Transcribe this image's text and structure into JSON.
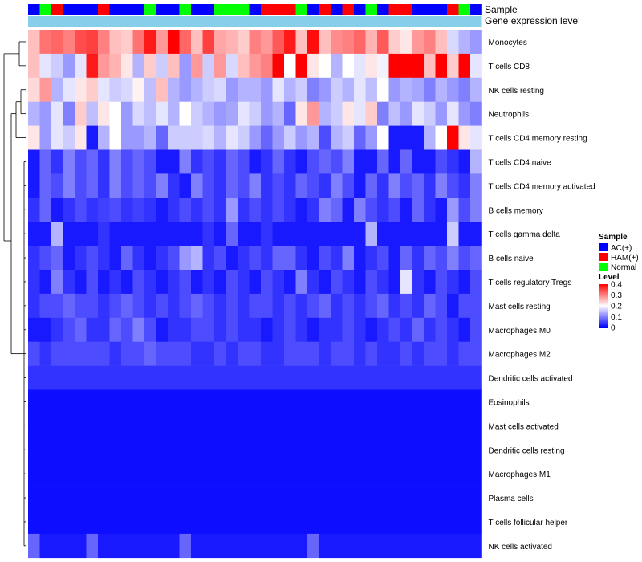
{
  "chart_data": {
    "type": "heatmap",
    "annotation_labels": [
      "Sample",
      "Gene expression level"
    ],
    "rows": [
      "Monocytes",
      "T cells CD8",
      "NK cells resting",
      "Neutrophils",
      "T cells CD4 memory resting",
      "T cells CD4 naive",
      "T cells CD4 memory activated",
      "B cells memory",
      "T cells gamma delta",
      "B cells naive",
      "T cells regulatory  Tregs",
      "Mast cells resting",
      "Macrophages M0",
      "Macrophages M2",
      "Dendritic cells activated",
      "Eosinophils",
      "Mast cells activated",
      "Dendritic cells resting",
      "Macrophages M1",
      "Plasma cells",
      "T cells follicular helper",
      "NK cells activated"
    ],
    "sample_groups": [
      "AC(+)",
      "Normal",
      "HAM(+)",
      "AC(+)",
      "AC(+)",
      "AC(+)",
      "HAM(+)",
      "AC(+)",
      "AC(+)",
      "AC(+)",
      "Normal",
      "AC(+)",
      "AC(+)",
      "Normal",
      "AC(+)",
      "AC(+)",
      "Normal",
      "Normal",
      "Normal",
      "AC(+)",
      "HAM(+)",
      "HAM(+)",
      "HAM(+)",
      "Normal",
      "AC(+)",
      "HAM(+)",
      "AC(+)",
      "HAM(+)",
      "AC(+)",
      "Normal",
      "AC(+)",
      "HAM(+)",
      "HAM(+)",
      "AC(+)",
      "AC(+)",
      "AC(+)",
      "HAM(+)",
      "Normal",
      "AC(+)"
    ],
    "values": [
      [
        0.25,
        0.31,
        0.32,
        0.3,
        0.34,
        0.35,
        0.3,
        0.25,
        0.24,
        0.31,
        0.38,
        0.28,
        0.4,
        0.32,
        0.25,
        0.35,
        0.27,
        0.26,
        0.24,
        0.3,
        0.28,
        0.33,
        0.38,
        0.25,
        0.39,
        0.25,
        0.29,
        0.3,
        0.32,
        0.26,
        0.33,
        0.24,
        0.22,
        0.28,
        0.3,
        0.25,
        0.17,
        0.14,
        0.12
      ],
      [
        0.25,
        0.18,
        0.16,
        0.12,
        0.18,
        0.38,
        0.28,
        0.26,
        0.22,
        0.14,
        0.24,
        0.16,
        0.25,
        0.12,
        0.28,
        0.16,
        0.28,
        0.17,
        0.25,
        0.28,
        0.3,
        0.42,
        0.2,
        0.42,
        0.22,
        0.2,
        0.14,
        0.2,
        0.18,
        0.22,
        0.19,
        0.42,
        0.42,
        0.42,
        0.25,
        0.4,
        0.24,
        0.4,
        0.18
      ],
      [
        0.23,
        0.28,
        0.14,
        0.18,
        0.22,
        0.24,
        0.18,
        0.16,
        0.17,
        0.21,
        0.15,
        0.25,
        0.14,
        0.12,
        0.14,
        0.16,
        0.17,
        0.12,
        0.14,
        0.14,
        0.12,
        0.18,
        0.14,
        0.16,
        0.1,
        0.12,
        0.16,
        0.14,
        0.18,
        0.15,
        0.2,
        0.12,
        0.14,
        0.13,
        0.1,
        0.14,
        0.12,
        0.1,
        0.14
      ],
      [
        0.14,
        0.12,
        0.18,
        0.1,
        0.24,
        0.15,
        0.22,
        0.2,
        0.12,
        0.17,
        0.15,
        0.18,
        0.14,
        0.2,
        0.16,
        0.14,
        0.12,
        0.13,
        0.18,
        0.16,
        0.12,
        0.14,
        0.08,
        0.22,
        0.28,
        0.14,
        0.16,
        0.22,
        0.18,
        0.24,
        0.1,
        0.15,
        0.12,
        0.18,
        0.16,
        0.12,
        0.18,
        0.12,
        0.1
      ],
      [
        0.22,
        0.12,
        0.18,
        0.16,
        0.22,
        0.02,
        0.14,
        0.2,
        0.12,
        0.12,
        0.14,
        0.08,
        0.16,
        0.16,
        0.16,
        0.17,
        0.14,
        0.18,
        0.16,
        0.12,
        0.08,
        0.12,
        0.16,
        0.12,
        0.14,
        0.06,
        0.14,
        0.16,
        0.08,
        0.12,
        0.2,
        0.02,
        0.02,
        0.02,
        0.14,
        0.2,
        0.42,
        0.22,
        0.18
      ],
      [
        0.02,
        0.08,
        0.04,
        0.1,
        0.06,
        0.08,
        0.04,
        0.1,
        0.06,
        0.08,
        0.06,
        0.02,
        0.02,
        0.1,
        0.04,
        0.06,
        0.04,
        0.08,
        0.06,
        0.02,
        0.04,
        0.08,
        0.04,
        0.02,
        0.06,
        0.08,
        0.06,
        0.1,
        0.02,
        0.02,
        0.08,
        0.02,
        0.08,
        0.02,
        0.02,
        0.06,
        0.04,
        0.02,
        0.14
      ],
      [
        0.02,
        0.08,
        0.06,
        0.1,
        0.06,
        0.08,
        0.04,
        0.1,
        0.06,
        0.08,
        0.06,
        0.1,
        0.04,
        0.02,
        0.1,
        0.06,
        0.04,
        0.08,
        0.06,
        0.1,
        0.04,
        0.06,
        0.04,
        0.08,
        0.06,
        0.04,
        0.1,
        0.06,
        0.02,
        0.08,
        0.04,
        0.1,
        0.06,
        0.08,
        0.04,
        0.1,
        0.06,
        0.04,
        0.1
      ],
      [
        0.04,
        0.08,
        0.02,
        0.04,
        0.06,
        0.04,
        0.05,
        0.06,
        0.04,
        0.05,
        0.04,
        0.02,
        0.04,
        0.06,
        0.04,
        0.06,
        0.04,
        0.12,
        0.04,
        0.06,
        0.04,
        0.06,
        0.04,
        0.02,
        0.04,
        0.1,
        0.08,
        0.02,
        0.1,
        0.06,
        0.04,
        0.06,
        0.02,
        0.08,
        0.04,
        0.02,
        0.12,
        0.06,
        0.1
      ],
      [
        0.02,
        0.02,
        0.14,
        0.02,
        0.02,
        0.02,
        0.04,
        0.02,
        0.02,
        0.02,
        0.02,
        0.02,
        0.02,
        0.02,
        0.02,
        0.04,
        0.02,
        0.08,
        0.02,
        0.02,
        0.04,
        0.02,
        0.02,
        0.02,
        0.02,
        0.02,
        0.02,
        0.02,
        0.02,
        0.14,
        0.02,
        0.02,
        0.02,
        0.02,
        0.02,
        0.02,
        0.16,
        0.02,
        0.02
      ],
      [
        0.04,
        0.06,
        0.08,
        0.02,
        0.04,
        0.06,
        0.04,
        0.02,
        0.08,
        0.04,
        0.02,
        0.04,
        0.06,
        0.12,
        0.14,
        0.04,
        0.06,
        0.02,
        0.04,
        0.06,
        0.04,
        0.08,
        0.08,
        0.04,
        0.02,
        0.06,
        0.04,
        0.1,
        0.02,
        0.04,
        0.06,
        0.02,
        0.08,
        0.04,
        0.08,
        0.06,
        0.1,
        0.06,
        0.08
      ],
      [
        0.04,
        0.02,
        0.1,
        0.04,
        0.02,
        0.06,
        0.02,
        0.04,
        0.02,
        0.06,
        0.04,
        0.02,
        0.04,
        0.06,
        0.02,
        0.04,
        0.02,
        0.06,
        0.04,
        0.02,
        0.06,
        0.04,
        0.02,
        0.1,
        0.04,
        0.02,
        0.06,
        0.04,
        0.02,
        0.06,
        0.04,
        0.02,
        0.18,
        0.04,
        0.02,
        0.06,
        0.04,
        0.02,
        0.06
      ],
      [
        0.04,
        0.06,
        0.06,
        0.08,
        0.06,
        0.06,
        0.04,
        0.06,
        0.08,
        0.06,
        0.04,
        0.06,
        0.04,
        0.06,
        0.08,
        0.06,
        0.04,
        0.06,
        0.04,
        0.06,
        0.06,
        0.04,
        0.06,
        0.04,
        0.06,
        0.08,
        0.04,
        0.06,
        0.04,
        0.06,
        0.08,
        0.04,
        0.06,
        0.04,
        0.08,
        0.06,
        0.02,
        0.06,
        0.06
      ],
      [
        0.02,
        0.02,
        0.04,
        0.06,
        0.08,
        0.04,
        0.04,
        0.08,
        0.06,
        0.1,
        0.06,
        0.02,
        0.04,
        0.04,
        0.06,
        0.06,
        0.04,
        0.06,
        0.04,
        0.04,
        0.02,
        0.04,
        0.06,
        0.04,
        0.02,
        0.04,
        0.04,
        0.06,
        0.04,
        0.02,
        0.04,
        0.06,
        0.04,
        0.08,
        0.04,
        0.06,
        0.04,
        0.02,
        0.06
      ],
      [
        0.06,
        0.04,
        0.06,
        0.06,
        0.06,
        0.06,
        0.06,
        0.04,
        0.06,
        0.06,
        0.08,
        0.06,
        0.06,
        0.06,
        0.04,
        0.04,
        0.06,
        0.04,
        0.06,
        0.06,
        0.04,
        0.04,
        0.06,
        0.06,
        0.06,
        0.04,
        0.06,
        0.06,
        0.04,
        0.06,
        0.04,
        0.04,
        0.06,
        0.04,
        0.06,
        0.06,
        0.04,
        0.06,
        0.06
      ],
      [
        0.04,
        0.04,
        0.04,
        0.04,
        0.04,
        0.04,
        0.04,
        0.04,
        0.04,
        0.04,
        0.04,
        0.04,
        0.04,
        0.04,
        0.04,
        0.04,
        0.04,
        0.04,
        0.04,
        0.04,
        0.04,
        0.04,
        0.04,
        0.04,
        0.04,
        0.04,
        0.04,
        0.04,
        0.04,
        0.04,
        0.04,
        0.04,
        0.04,
        0.04,
        0.04,
        0.04,
        0.04,
        0.04,
        0.04
      ],
      [
        0.01,
        0.01,
        0.01,
        0.01,
        0.01,
        0.01,
        0.01,
        0.01,
        0.01,
        0.01,
        0.01,
        0.01,
        0.01,
        0.01,
        0.01,
        0.01,
        0.01,
        0.01,
        0.01,
        0.01,
        0.01,
        0.01,
        0.01,
        0.01,
        0.01,
        0.01,
        0.01,
        0.01,
        0.01,
        0.01,
        0.01,
        0.01,
        0.01,
        0.01,
        0.01,
        0.01,
        0.01,
        0.01,
        0.01
      ],
      [
        0.01,
        0.01,
        0.01,
        0.01,
        0.01,
        0.01,
        0.01,
        0.01,
        0.01,
        0.01,
        0.01,
        0.01,
        0.01,
        0.01,
        0.01,
        0.01,
        0.01,
        0.01,
        0.01,
        0.01,
        0.01,
        0.01,
        0.01,
        0.01,
        0.01,
        0.01,
        0.01,
        0.01,
        0.01,
        0.01,
        0.01,
        0.01,
        0.01,
        0.01,
        0.01,
        0.01,
        0.01,
        0.01,
        0.01
      ],
      [
        0.01,
        0.01,
        0.01,
        0.01,
        0.01,
        0.01,
        0.01,
        0.01,
        0.01,
        0.01,
        0.01,
        0.01,
        0.01,
        0.01,
        0.01,
        0.01,
        0.01,
        0.01,
        0.01,
        0.01,
        0.01,
        0.01,
        0.01,
        0.01,
        0.01,
        0.01,
        0.01,
        0.01,
        0.01,
        0.01,
        0.01,
        0.01,
        0.01,
        0.01,
        0.01,
        0.01,
        0.01,
        0.01,
        0.01
      ],
      [
        0.01,
        0.01,
        0.01,
        0.01,
        0.01,
        0.01,
        0.01,
        0.01,
        0.01,
        0.01,
        0.01,
        0.01,
        0.01,
        0.01,
        0.01,
        0.01,
        0.01,
        0.01,
        0.01,
        0.01,
        0.01,
        0.01,
        0.01,
        0.01,
        0.01,
        0.01,
        0.01,
        0.01,
        0.01,
        0.01,
        0.01,
        0.01,
        0.01,
        0.01,
        0.01,
        0.01,
        0.01,
        0.01,
        0.01
      ],
      [
        0.01,
        0.01,
        0.01,
        0.01,
        0.01,
        0.01,
        0.01,
        0.01,
        0.01,
        0.01,
        0.01,
        0.01,
        0.01,
        0.01,
        0.01,
        0.01,
        0.01,
        0.01,
        0.01,
        0.01,
        0.01,
        0.01,
        0.01,
        0.01,
        0.01,
        0.01,
        0.01,
        0.01,
        0.01,
        0.01,
        0.01,
        0.01,
        0.01,
        0.01,
        0.01,
        0.01,
        0.01,
        0.01,
        0.01
      ],
      [
        0.01,
        0.01,
        0.01,
        0.01,
        0.01,
        0.01,
        0.01,
        0.01,
        0.01,
        0.01,
        0.01,
        0.01,
        0.01,
        0.01,
        0.01,
        0.01,
        0.01,
        0.01,
        0.01,
        0.01,
        0.01,
        0.01,
        0.01,
        0.01,
        0.01,
        0.01,
        0.01,
        0.01,
        0.01,
        0.01,
        0.01,
        0.01,
        0.01,
        0.01,
        0.01,
        0.01,
        0.01,
        0.01,
        0.01
      ],
      [
        0.08,
        0.02,
        0.02,
        0.02,
        0.02,
        0.08,
        0.02,
        0.02,
        0.02,
        0.02,
        0.02,
        0.02,
        0.02,
        0.08,
        0.02,
        0.02,
        0.02,
        0.02,
        0.02,
        0.02,
        0.02,
        0.02,
        0.02,
        0.02,
        0.08,
        0.02,
        0.02,
        0.02,
        0.02,
        0.02,
        0.02,
        0.02,
        0.02,
        0.02,
        0.02,
        0.02,
        0.02,
        0.02,
        0.02
      ]
    ],
    "legend": {
      "sample_title": "Sample",
      "sample_entries": [
        {
          "label": "AC(+)",
          "color": "#0000ff"
        },
        {
          "label": "HAM(+)",
          "color": "#ff0000"
        },
        {
          "label": "Normal",
          "color": "#00ff00"
        }
      ],
      "level_title": "Level",
      "level_ticks": [
        "0.4",
        "0.3",
        "0.2",
        "0.1",
        "0"
      ],
      "range": [
        0,
        0.4
      ]
    },
    "colors": {
      "low": "#0000ff",
      "mid": "#ffffff",
      "high": "#ff0000",
      "gene_expression_bar": "#87ceeb"
    },
    "dendrogram_placement": "left"
  }
}
